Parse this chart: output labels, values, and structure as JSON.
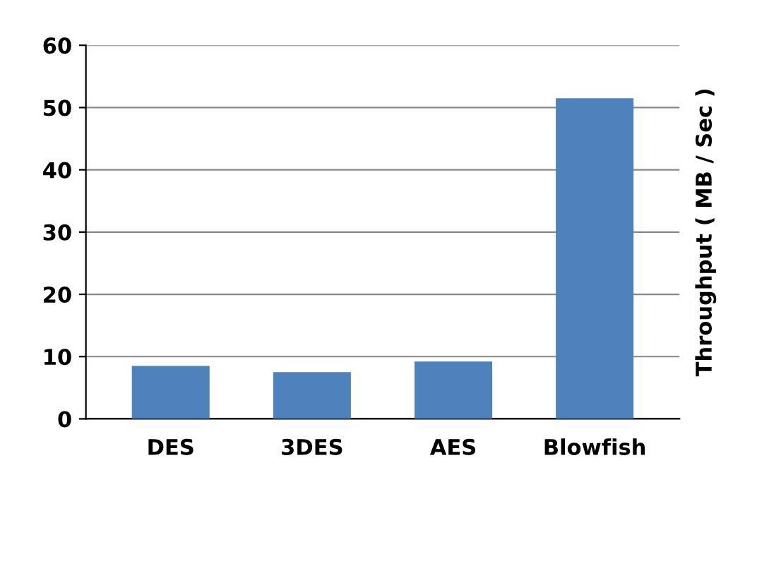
{
  "chart_data": {
    "type": "bar",
    "categories": [
      "DES",
      "3DES",
      "AES",
      "Blowfish"
    ],
    "values": [
      8.5,
      7.5,
      9.2,
      51.5
    ],
    "color": "#4f81bd",
    "ylabel": "Throughput ( MB / Sec )",
    "ylim": [
      0,
      60
    ],
    "yticks": [
      0,
      10,
      20,
      30,
      40,
      50,
      60
    ],
    "grid": "y"
  }
}
